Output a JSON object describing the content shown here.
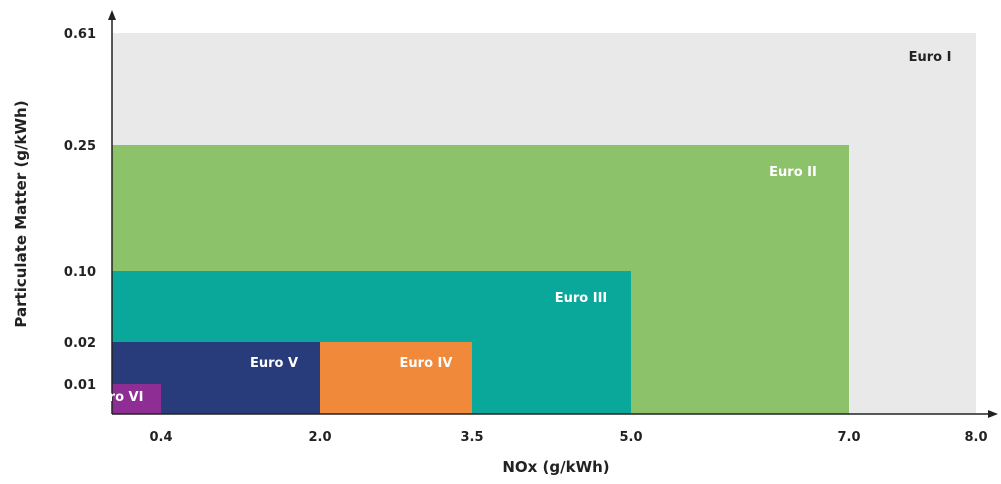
{
  "chart_data": {
    "type": "area",
    "title": "",
    "xlabel": "NOx (g/kWh)",
    "ylabel": "Particulate Matter (g/kWh)",
    "x_ticks": [
      "0.4",
      "2.0",
      "3.5",
      "5.0",
      "7.0",
      "8.0"
    ],
    "y_ticks": [
      "0.61",
      "0.25",
      "0.10",
      "0.02",
      "0.01"
    ],
    "regions": [
      {
        "name": "Euro I",
        "nox_limit": 8.0,
        "pm_limit": 0.61,
        "color": "#e9e9e9",
        "label_color": "#222222"
      },
      {
        "name": "Euro II",
        "nox_limit": 7.0,
        "pm_limit": 0.25,
        "color": "#8cc26a",
        "label_color": "#ffffff"
      },
      {
        "name": "Euro III",
        "nox_limit": 5.0,
        "pm_limit": 0.1,
        "color": "#0aa89b",
        "label_color": "#ffffff"
      },
      {
        "name": "Euro IV",
        "nox_limit": 3.5,
        "pm_limit": 0.02,
        "color": "#f0893a",
        "label_color": "#ffffff"
      },
      {
        "name": "Euro V",
        "nox_limit": 2.0,
        "pm_limit": 0.02,
        "color": "#283b7a",
        "label_color": "#ffffff"
      },
      {
        "name": "Euro VI",
        "nox_limit": 0.4,
        "pm_limit": 0.01,
        "color": "#8e2d93",
        "label_color": "#ffffff"
      }
    ],
    "grid": false,
    "legend": "none"
  }
}
